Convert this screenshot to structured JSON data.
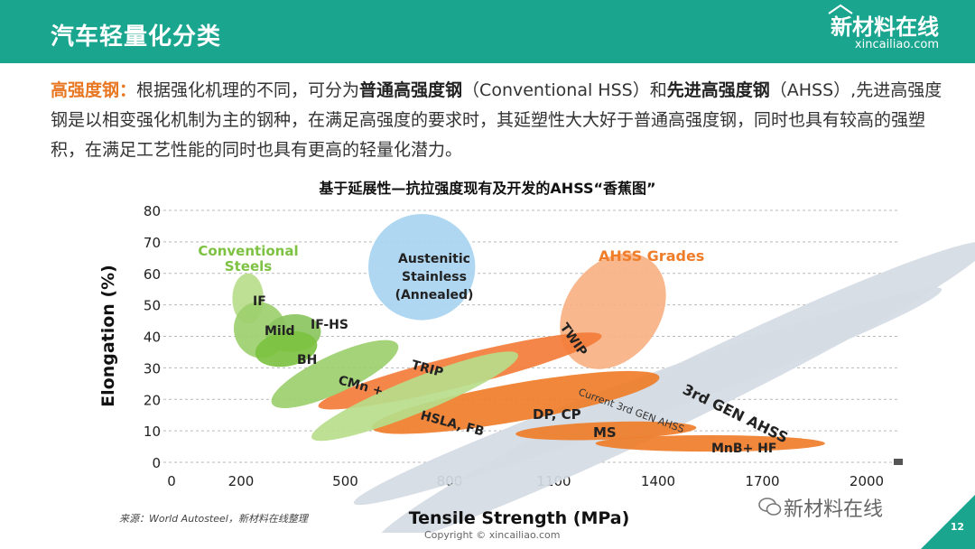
{
  "header": {
    "title": "汽车轻量化分类",
    "brand_name": "新材料在线",
    "brand_url": "xincailiao.com"
  },
  "intro": {
    "lead": "高强度钢：",
    "t1": "根据强化机理的不同，可分为",
    "b1": "普通高强度钢",
    "t2": "（Conventional HSS）和",
    "b2": "先进高强度钢",
    "t3": "（AHSS）,先进高强度钢是以相变强化机制为主的钢种，在满足高强度的要求时，其延塑性大大好于普通高强度钢，同时也具有较高的强塑积，在满足工艺性能的同时也具有更高的轻量化潜力。"
  },
  "chart_data": {
    "type": "scatter",
    "title": "基于延展性—抗拉强度现有及开发的AHSS“香蕉图”",
    "xlabel": "Tensile Strength (MPa)",
    "ylabel": "Elongation (%)",
    "xlim": [
      0,
      2000
    ],
    "ylim": [
      0,
      80
    ],
    "xticks": [
      0,
      200,
      500,
      800,
      1100,
      1400,
      1700,
      2000
    ],
    "yticks": [
      0,
      10,
      20,
      30,
      40,
      50,
      60,
      70,
      80
    ],
    "grid": "horizontal dashed",
    "group_labels": [
      {
        "text": "Conventional Steels",
        "color": "#7dc242"
      },
      {
        "text": "AHSS Grades",
        "color": "#ef7d2a"
      }
    ],
    "regions": [
      {
        "name": "Current 3rd GEN AHSS",
        "color": "#d5dbe4",
        "cx": 1370,
        "cy": 21,
        "rx": 900,
        "ry": 6.5,
        "angle": -20,
        "label_angle": 20
      },
      {
        "name": "3rd GEN AHSS",
        "color": "#d5dbe4",
        "cx": 1470,
        "cy": 22,
        "rx": 980,
        "ry": 9,
        "angle": -26,
        "label_angle": 26
      },
      {
        "name": "TWIP",
        "color": "#f7b183",
        "cx": 1270,
        "cy": 48,
        "rx": 135,
        "ry": 20,
        "angle": 36,
        "label_angle": 55
      },
      {
        "name": "MnB+ HF",
        "color": "#ef7d2a",
        "cx": 1550,
        "cy": 6,
        "rx": 330,
        "ry": 2.6,
        "angle": 0,
        "label_angle": 0
      },
      {
        "name": "MS",
        "color": "#ef7d2a",
        "cx": 1250,
        "cy": 10,
        "rx": 260,
        "ry": 2.8,
        "angle": -2,
        "label_angle": 0
      },
      {
        "name": "DP, CP",
        "color": "#ef7d2a",
        "cx": 990,
        "cy": 19,
        "rx": 420,
        "ry": 6,
        "angle": -10,
        "label_angle": 0
      },
      {
        "name": "TRIP",
        "color": "#f47c3a",
        "cx": 830,
        "cy": 29,
        "rx": 420,
        "ry": 5,
        "angle": -14,
        "label_angle": 15
      },
      {
        "name": "HSLA, FB",
        "color": "#b7dd8b",
        "cx": 700,
        "cy": 21,
        "rx": 320,
        "ry": 5.5,
        "angle": -22,
        "label_angle": 15
      },
      {
        "name": "CMn +",
        "color": "#9ccf6e",
        "cx": 470,
        "cy": 28,
        "rx": 200,
        "ry": 6,
        "angle": -25,
        "label_angle": 15
      },
      {
        "name": "IF",
        "color": "#b7dd8b",
        "cx": 220,
        "cy": 52,
        "rx": 45,
        "ry": 8,
        "angle": 0,
        "label_angle": 0
      },
      {
        "name": "Mild",
        "color": "#9ccf6e",
        "cx": 255,
        "cy": 42,
        "rx": 75,
        "ry": 9,
        "angle": -20,
        "label_angle": 0
      },
      {
        "name": "IF-HS",
        "color": "#8cc65f",
        "cx": 350,
        "cy": 41,
        "rx": 80,
        "ry": 6,
        "angle": -5,
        "label_angle": 0
      },
      {
        "name": "BH",
        "color": "#7dc242",
        "cx": 330,
        "cy": 36,
        "rx": 90,
        "ry": 5.5,
        "angle": -10,
        "label_angle": 0
      },
      {
        "name": "Austenitic Stainless (Annealed)",
        "color": "#a9d4f0",
        "cx": 720,
        "cy": 62,
        "rx": 155,
        "ry": 17,
        "angle": 0,
        "label_angle": 0
      }
    ]
  },
  "footer": {
    "source": "来源：World Autosteel，新材料在线整理",
    "wechat": "新材料在线",
    "copyright": "Copyright © xincailiao.com",
    "page": "12"
  },
  "colors": {
    "header": "#1aa58f",
    "accent": "#e87722"
  },
  "icons": [
    "house-logo-icon",
    "wechat-icon"
  ]
}
